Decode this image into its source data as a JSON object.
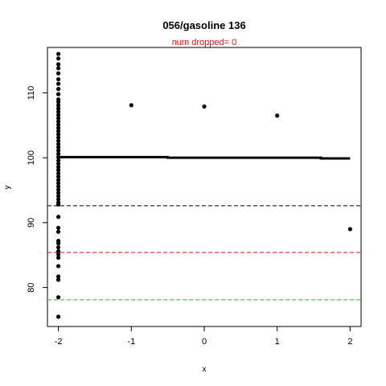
{
  "chart_data": {
    "type": "scatter",
    "title": "056/gasoline 136",
    "subtitle": "num dropped= 0",
    "xlabel": "x",
    "ylabel": "y",
    "xlim": [
      -2.15,
      2.15
    ],
    "ylim": [
      74,
      117
    ],
    "xticks": [
      -2,
      -1,
      0,
      1,
      2
    ],
    "yticks": [
      80,
      90,
      100,
      110
    ],
    "grid": false,
    "points": [
      {
        "x": -2,
        "y": 116.0
      },
      {
        "x": -2,
        "y": 115.3
      },
      {
        "x": -2,
        "y": 114.4
      },
      {
        "x": -2,
        "y": 113.8
      },
      {
        "x": -2,
        "y": 113.0
      },
      {
        "x": -2,
        "y": 112.1
      },
      {
        "x": -2,
        "y": 111.4
      },
      {
        "x": -2,
        "y": 110.6
      },
      {
        "x": -2,
        "y": 109.8
      },
      {
        "x": -2,
        "y": 109.0
      },
      {
        "x": -2,
        "y": 108.6
      },
      {
        "x": -2,
        "y": 108.1
      },
      {
        "x": -2,
        "y": 107.6
      },
      {
        "x": -2,
        "y": 107.1
      },
      {
        "x": -2,
        "y": 106.6
      },
      {
        "x": -2,
        "y": 106.1
      },
      {
        "x": -2,
        "y": 105.6
      },
      {
        "x": -2,
        "y": 105.1
      },
      {
        "x": -2,
        "y": 104.6
      },
      {
        "x": -2,
        "y": 104.1
      },
      {
        "x": -2,
        "y": 103.6
      },
      {
        "x": -2,
        "y": 103.1
      },
      {
        "x": -2,
        "y": 102.6
      },
      {
        "x": -2,
        "y": 102.1
      },
      {
        "x": -2,
        "y": 101.6
      },
      {
        "x": -2,
        "y": 101.1
      },
      {
        "x": -2,
        "y": 100.6
      },
      {
        "x": -2,
        "y": 100.1
      },
      {
        "x": -2,
        "y": 99.6
      },
      {
        "x": -2,
        "y": 99.1
      },
      {
        "x": -2,
        "y": 98.6
      },
      {
        "x": -2,
        "y": 98.1
      },
      {
        "x": -2,
        "y": 97.6
      },
      {
        "x": -2,
        "y": 97.1
      },
      {
        "x": -2,
        "y": 96.6
      },
      {
        "x": -2,
        "y": 96.1
      },
      {
        "x": -2,
        "y": 95.6
      },
      {
        "x": -2,
        "y": 95.1
      },
      {
        "x": -2,
        "y": 94.6
      },
      {
        "x": -2,
        "y": 94.1
      },
      {
        "x": -2,
        "y": 93.6
      },
      {
        "x": -2,
        "y": 93.1
      },
      {
        "x": -2,
        "y": 92.8
      },
      {
        "x": -2,
        "y": 90.9
      },
      {
        "x": -2,
        "y": 89.2
      },
      {
        "x": -2,
        "y": 88.6
      },
      {
        "x": -2,
        "y": 87.2
      },
      {
        "x": -2,
        "y": 86.8
      },
      {
        "x": -2,
        "y": 86.2
      },
      {
        "x": -2,
        "y": 85.6
      },
      {
        "x": -2,
        "y": 85.1
      },
      {
        "x": -2,
        "y": 84.6
      },
      {
        "x": -2,
        "y": 83.3
      },
      {
        "x": -2,
        "y": 81.7
      },
      {
        "x": -2,
        "y": 81.2
      },
      {
        "x": -2,
        "y": 78.5
      },
      {
        "x": -2,
        "y": 75.5
      },
      {
        "x": -1,
        "y": 108.1
      },
      {
        "x": 0,
        "y": 107.9
      },
      {
        "x": 1,
        "y": 106.5
      },
      {
        "x": 2,
        "y": 89.0
      }
    ],
    "fit_line": [
      {
        "x": -2.0,
        "y": 100.1
      },
      {
        "x": -0.5,
        "y": 100.1
      },
      {
        "x": -0.5,
        "y": 100.0
      },
      {
        "x": 1.6,
        "y": 100.0
      },
      {
        "x": 1.6,
        "y": 99.9
      },
      {
        "x": 2.0,
        "y": 99.9
      }
    ],
    "hlines": [
      {
        "y": 92.6,
        "color": "#000000",
        "style": "dashed"
      },
      {
        "y": 85.4,
        "color": "#ff0000",
        "style": "dashed"
      },
      {
        "y": 78.1,
        "color": "#00cc00",
        "style": "dashed"
      }
    ]
  }
}
